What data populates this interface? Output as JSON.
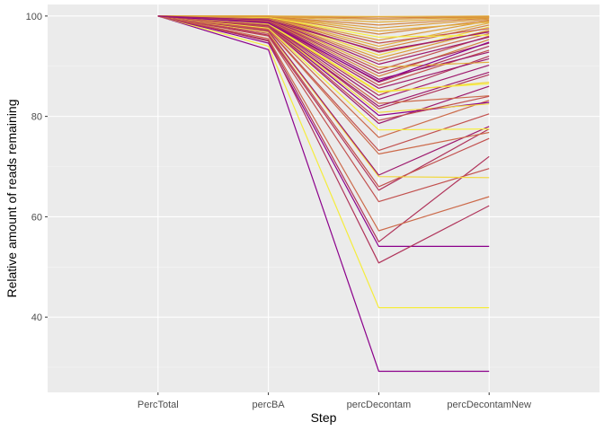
{
  "chart_data": {
    "type": "line",
    "title": "",
    "xlabel": "Step",
    "ylabel": "Relative amount of reads remaining",
    "categories": [
      "PercTotal",
      "percBA",
      "percDecontam",
      "percDecontamNew"
    ],
    "ylim": [
      25,
      102.3
    ],
    "yticks": [
      40,
      60,
      80,
      100
    ],
    "grid": true,
    "legend": "none",
    "colors": {
      "panel_background": "#ebebeb",
      "grid_major": "#ffffff",
      "grid_minor": "#f5f5f5",
      "palette": [
        "#8b008b",
        "#9e1a6e",
        "#b0335a",
        "#c2504e",
        "#cc6a4a",
        "#d4843e",
        "#dc9c3a",
        "#e2ad3c",
        "#f2d83c",
        "#f7ef3c"
      ]
    },
    "series": [
      {
        "values": [
          100,
          93.3,
          29.2,
          29.2
        ],
        "color": "#8b008b"
      },
      {
        "values": [
          100,
          94.0,
          41.9,
          41.9
        ],
        "color": "#f5ec3c"
      },
      {
        "values": [
          100,
          94.6,
          54.1,
          54.1
        ],
        "color": "#8b008b"
      },
      {
        "values": [
          100,
          95.0,
          50.8,
          62.2
        ],
        "color": "#b0335a"
      },
      {
        "values": [
          100,
          95.2,
          55.0,
          72.0
        ],
        "color": "#b0335a"
      },
      {
        "values": [
          100,
          95.5,
          57.2,
          64.0
        ],
        "color": "#cc6a4a"
      },
      {
        "values": [
          100,
          96.0,
          63.0,
          69.6
        ],
        "color": "#c2504e"
      },
      {
        "values": [
          100,
          96.2,
          65.3,
          77.5
        ],
        "color": "#b0335a"
      },
      {
        "values": [
          100,
          96.5,
          66.0,
          75.6
        ],
        "color": "#c2504e"
      },
      {
        "values": [
          100,
          96.8,
          68.0,
          67.8
        ],
        "color": "#f2d83c"
      },
      {
        "values": [
          100,
          97.0,
          68.3,
          78.0
        ],
        "color": "#9e1a6e"
      },
      {
        "values": [
          100,
          97.2,
          72.5,
          76.8
        ],
        "color": "#cc6a4a"
      },
      {
        "values": [
          100,
          97.3,
          73.2,
          80.5
        ],
        "color": "#c2504e"
      },
      {
        "values": [
          100,
          97.5,
          75.8,
          83.2
        ],
        "color": "#cc6a4a"
      },
      {
        "values": [
          100,
          97.6,
          77.3,
          77.5
        ],
        "color": "#f7ef3c"
      },
      {
        "values": [
          100,
          97.8,
          78.6,
          86.0
        ],
        "color": "#9e1a6e"
      },
      {
        "values": [
          100,
          98.0,
          80.2,
          82.8
        ],
        "color": "#8b008b"
      },
      {
        "values": [
          100,
          98.1,
          80.8,
          82.5
        ],
        "color": "#f2d83c"
      },
      {
        "values": [
          100,
          98.2,
          81.5,
          88.3
        ],
        "color": "#b0335a"
      },
      {
        "values": [
          100,
          98.3,
          82.6,
          84.1
        ],
        "color": "#cc6a4a"
      },
      {
        "values": [
          100,
          98.4,
          83.4,
          90.2
        ],
        "color": "#9e1a6e"
      },
      {
        "values": [
          100,
          98.5,
          84.2,
          92.0
        ],
        "color": "#b0335a"
      },
      {
        "values": [
          100,
          98.6,
          85.0,
          86.5
        ],
        "color": "#f7ef3c"
      },
      {
        "values": [
          100,
          98.7,
          85.6,
          91.5
        ],
        "color": "#9e1a6e"
      },
      {
        "values": [
          100,
          98.8,
          86.2,
          93.2
        ],
        "color": "#c2504e"
      },
      {
        "values": [
          100,
          98.9,
          86.8,
          94.0
        ],
        "color": "#b0335a"
      },
      {
        "values": [
          100,
          99.0,
          87.4,
          92.8
        ],
        "color": "#9e1a6e"
      },
      {
        "values": [
          100,
          99.1,
          88.0,
          95.3
        ],
        "color": "#d4843e"
      },
      {
        "values": [
          100,
          99.2,
          88.6,
          94.6
        ],
        "color": "#b0335a"
      },
      {
        "values": [
          100,
          99.3,
          89.2,
          96.0
        ],
        "color": "#c2504e"
      },
      {
        "values": [
          100,
          99.4,
          89.8,
          90.8
        ],
        "color": "#e2ad3c"
      },
      {
        "values": [
          100,
          99.4,
          90.4,
          95.8
        ],
        "color": "#9e1a6e"
      },
      {
        "values": [
          100,
          99.5,
          91.0,
          96.5
        ],
        "color": "#cc6a4a"
      },
      {
        "values": [
          100,
          99.5,
          91.6,
          97.2
        ],
        "color": "#dc9c3a"
      },
      {
        "values": [
          100,
          99.6,
          92.2,
          97.8
        ],
        "color": "#f2d83c"
      },
      {
        "values": [
          100,
          99.6,
          92.8,
          96.9
        ],
        "color": "#b0335a"
      },
      {
        "values": [
          100,
          99.7,
          93.4,
          98.2
        ],
        "color": "#d4843e"
      },
      {
        "values": [
          100,
          99.7,
          94.0,
          98.6
        ],
        "color": "#e2ad3c"
      },
      {
        "values": [
          100,
          99.8,
          94.6,
          97.5
        ],
        "color": "#c2504e"
      },
      {
        "values": [
          100,
          99.8,
          95.2,
          99.0
        ],
        "color": "#dc9c3a"
      },
      {
        "values": [
          100,
          99.8,
          95.8,
          96.2
        ],
        "color": "#f7ef3c"
      },
      {
        "values": [
          100,
          99.9,
          96.4,
          99.2
        ],
        "color": "#d4843e"
      },
      {
        "values": [
          100,
          99.9,
          97.0,
          98.8
        ],
        "color": "#e2ad3c"
      },
      {
        "values": [
          100,
          99.9,
          97.6,
          99.4
        ],
        "color": "#dc9c3a"
      },
      {
        "values": [
          100,
          99.9,
          98.2,
          99.6
        ],
        "color": "#d4843e"
      },
      {
        "values": [
          100,
          100,
          98.8,
          99.7
        ],
        "color": "#e2ad3c"
      },
      {
        "values": [
          100,
          100,
          99.3,
          99.8
        ],
        "color": "#dc9c3a"
      },
      {
        "values": [
          100,
          100,
          99.6,
          99.9
        ],
        "color": "#d4843e"
      },
      {
        "values": [
          100,
          100,
          99.9,
          100
        ],
        "color": "#e2ad3c"
      },
      {
        "values": [
          100,
          98.0,
          82.0,
          88.8
        ],
        "color": "#9e1a6e"
      },
      {
        "values": [
          100,
          98.4,
          84.8,
          86.8
        ],
        "color": "#f2d83c"
      },
      {
        "values": [
          100,
          97.9,
          79.2,
          84.0
        ],
        "color": "#c2504e"
      },
      {
        "values": [
          100,
          98.6,
          87.0,
          94.8
        ],
        "color": "#8b008b"
      },
      {
        "values": [
          100,
          99.2,
          93.0,
          96.8
        ],
        "color": "#9e1a6e"
      }
    ]
  }
}
